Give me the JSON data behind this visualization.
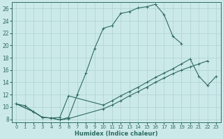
{
  "xlabel": "Humidex (Indice chaleur)",
  "xlim": [
    -0.5,
    23.5
  ],
  "ylim": [
    7.5,
    27.0
  ],
  "background_color": "#cce9ea",
  "grid_color": "#b0d4d5",
  "line_color": "#2e6b62",
  "line1_x": [
    0,
    1,
    2,
    3,
    4,
    5,
    6,
    7,
    8,
    9,
    10,
    11,
    12,
    13,
    14,
    15,
    16,
    17,
    18,
    19
  ],
  "line1_y": [
    10.5,
    10.2,
    9.2,
    8.3,
    8.2,
    7.9,
    8.3,
    12.0,
    15.5,
    19.5,
    22.8,
    23.2,
    25.2,
    25.5,
    26.1,
    26.3,
    26.7,
    25.0,
    21.5,
    20.3
  ],
  "line2_x": [
    0,
    2,
    3,
    4,
    5,
    6,
    10,
    11,
    12,
    13,
    14,
    15,
    16,
    17,
    18,
    19,
    20,
    21,
    22,
    23
  ],
  "line2_y": [
    10.5,
    9.2,
    8.3,
    8.2,
    8.3,
    11.8,
    10.3,
    11.0,
    11.8,
    12.5,
    13.2,
    14.0,
    14.8,
    15.5,
    16.2,
    17.0,
    17.8,
    15.0,
    13.5,
    15.0
  ],
  "line3_x": [
    0,
    2,
    3,
    4,
    5,
    6,
    10,
    11,
    12,
    13,
    14,
    15,
    16,
    17,
    18,
    19,
    20,
    21,
    22,
    23
  ],
  "line3_y": [
    10.5,
    9.2,
    8.3,
    8.2,
    7.9,
    8.1,
    9.7,
    10.3,
    11.0,
    11.8,
    12.5,
    13.2,
    14.0,
    14.7,
    15.4,
    16.0,
    16.5,
    17.0,
    17.5,
    null
  ],
  "xticks": [
    0,
    1,
    2,
    3,
    4,
    5,
    6,
    7,
    8,
    9,
    10,
    11,
    12,
    13,
    14,
    15,
    16,
    17,
    18,
    19,
    20,
    21,
    22,
    23
  ],
  "yticks": [
    8,
    10,
    12,
    14,
    16,
    18,
    20,
    22,
    24,
    26
  ]
}
